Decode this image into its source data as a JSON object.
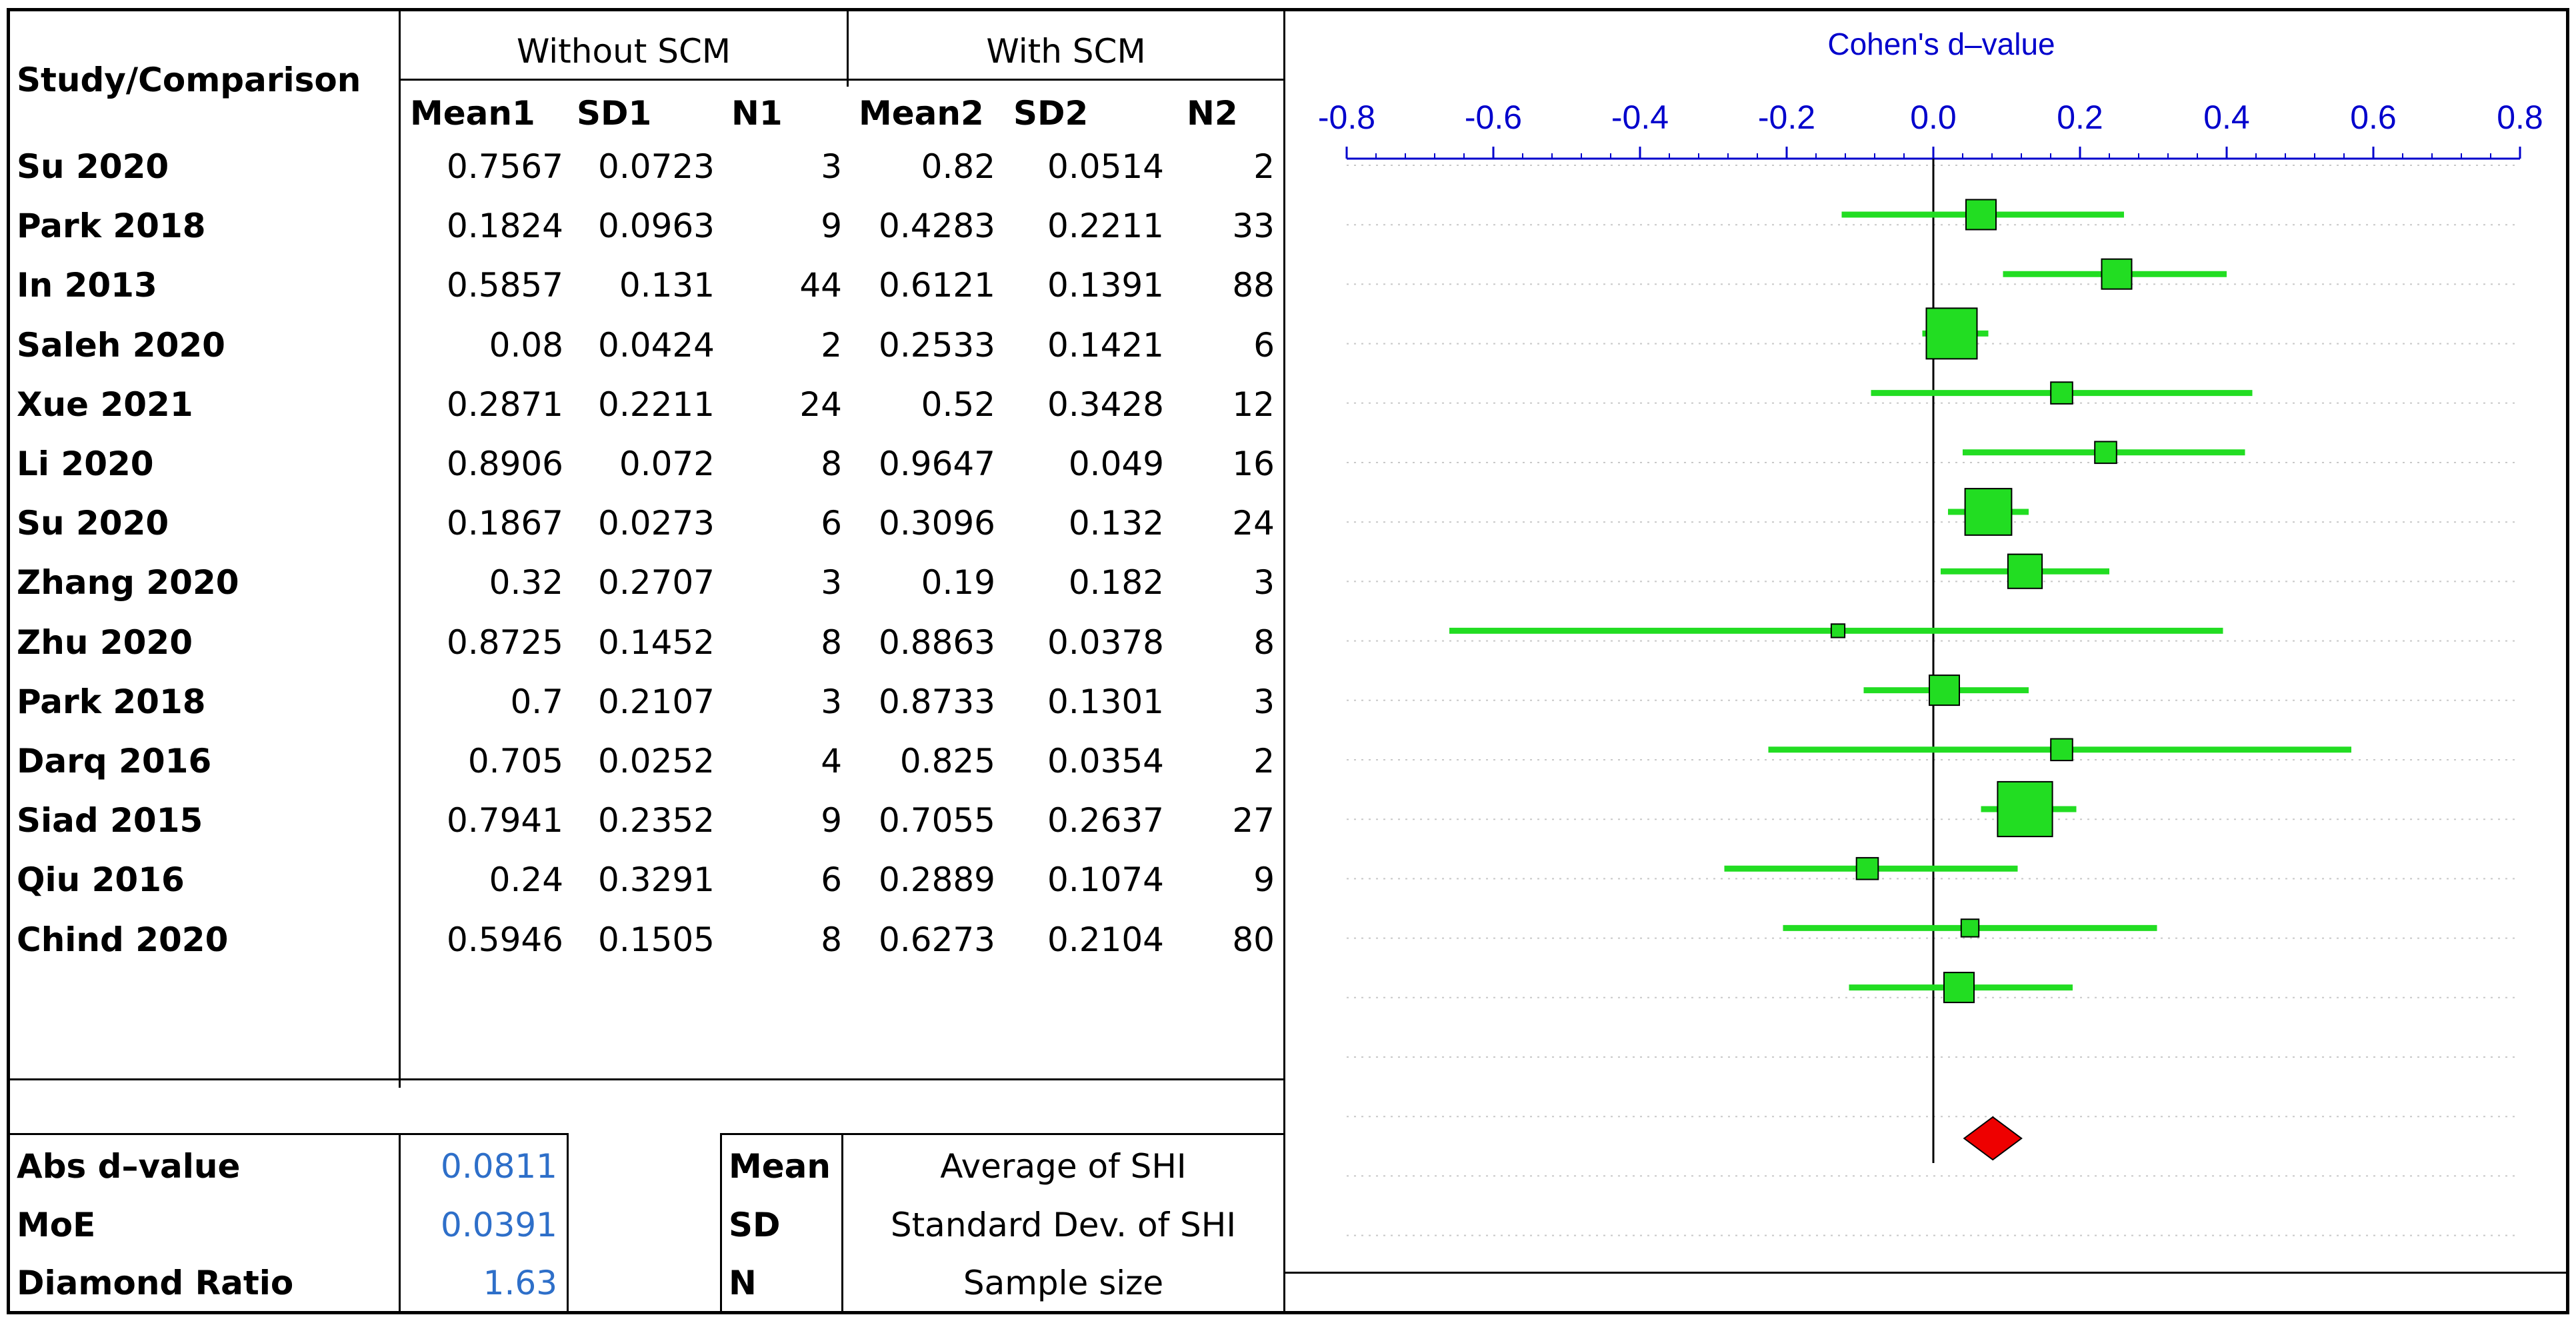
{
  "table": {
    "study_header": "Study/Comparison",
    "group1_header": "Without SCM",
    "group2_header": "With SCM",
    "columns": [
      "Mean1",
      "SD1",
      "N1",
      "Mean2",
      "SD2",
      "N2"
    ],
    "rows": [
      {
        "study": "Su 2020",
        "mean1": "0.7567",
        "sd1": "0.0723",
        "n1": "3",
        "mean2": "0.82",
        "sd2": "0.0514",
        "n2": "2"
      },
      {
        "study": "Park 2018",
        "mean1": "0.1824",
        "sd1": "0.0963",
        "n1": "9",
        "mean2": "0.4283",
        "sd2": "0.2211",
        "n2": "33"
      },
      {
        "study": "In 2013",
        "mean1": "0.5857",
        "sd1": "0.131",
        "n1": "44",
        "mean2": "0.6121",
        "sd2": "0.1391",
        "n2": "88"
      },
      {
        "study": "Saleh 2020",
        "mean1": "0.08",
        "sd1": "0.0424",
        "n1": "2",
        "mean2": "0.2533",
        "sd2": "0.1421",
        "n2": "6"
      },
      {
        "study": "Xue 2021",
        "mean1": "0.2871",
        "sd1": "0.2211",
        "n1": "24",
        "mean2": "0.52",
        "sd2": "0.3428",
        "n2": "12"
      },
      {
        "study": "Li 2020",
        "mean1": "0.8906",
        "sd1": "0.072",
        "n1": "8",
        "mean2": "0.9647",
        "sd2": "0.049",
        "n2": "16"
      },
      {
        "study": "Su 2020",
        "mean1": "0.1867",
        "sd1": "0.0273",
        "n1": "6",
        "mean2": "0.3096",
        "sd2": "0.132",
        "n2": "24"
      },
      {
        "study": "Zhang 2020",
        "mean1": "0.32",
        "sd1": "0.2707",
        "n1": "3",
        "mean2": "0.19",
        "sd2": "0.182",
        "n2": "3"
      },
      {
        "study": "Zhu 2020",
        "mean1": "0.8725",
        "sd1": "0.1452",
        "n1": "8",
        "mean2": "0.8863",
        "sd2": "0.0378",
        "n2": "8"
      },
      {
        "study": "Park 2018",
        "mean1": "0.7",
        "sd1": "0.2107",
        "n1": "3",
        "mean2": "0.8733",
        "sd2": "0.1301",
        "n2": "3"
      },
      {
        "study": "Darq 2016",
        "mean1": "0.705",
        "sd1": "0.0252",
        "n1": "4",
        "mean2": "0.825",
        "sd2": "0.0354",
        "n2": "2"
      },
      {
        "study": "Siad 2015",
        "mean1": "0.7941",
        "sd1": "0.2352",
        "n1": "9",
        "mean2": "0.7055",
        "sd2": "0.2637",
        "n2": "27"
      },
      {
        "study": "Qiu 2016",
        "mean1": "0.24",
        "sd1": "0.3291",
        "n1": "6",
        "mean2": "0.2889",
        "sd2": "0.1074",
        "n2": "9"
      },
      {
        "study": "Chind 2020",
        "mean1": "0.5946",
        "sd1": "0.1505",
        "n1": "8",
        "mean2": "0.6273",
        "sd2": "0.2104",
        "n2": "80"
      }
    ]
  },
  "summary": {
    "abs_d_label": "Abs d–value",
    "abs_d_value": "0.0811",
    "moe_label": "MoE",
    "moe_value": "0.0391",
    "diamond_label": "Diamond Ratio",
    "diamond_value": "1.63"
  },
  "legend": {
    "mean_key": "Mean",
    "mean_desc": "Average of SHI",
    "sd_key": "SD",
    "sd_desc": "Standard Dev. of SHI",
    "n_key": "N",
    "n_desc": "Sample size"
  },
  "colors": {
    "marker": "#22dd22",
    "diamond": "#ee0000",
    "axis": "#0000cc",
    "value_text": "#2e6fc9"
  },
  "chart_data": {
    "type": "forest",
    "title": "Cohen's  d–value",
    "xlim": [
      -0.8,
      0.8
    ],
    "ticks": [
      -0.8,
      -0.6,
      -0.4,
      -0.2,
      0.0,
      0.2,
      0.4,
      0.6,
      0.8
    ],
    "tick_labels": [
      "-0.8",
      "-0.6",
      "-0.4",
      "-0.2",
      "0.0",
      "0.2",
      "0.4",
      "0.6",
      "0.8"
    ],
    "studies": [
      {
        "d": 0.065,
        "lo": -0.125,
        "hi": 0.26,
        "weight": 5
      },
      {
        "d": 0.25,
        "lo": 0.095,
        "hi": 0.4,
        "weight": 5
      },
      {
        "d": 0.025,
        "lo": -0.015,
        "hi": 0.075,
        "weight": 10
      },
      {
        "d": 0.175,
        "lo": -0.085,
        "hi": 0.435,
        "weight": 3
      },
      {
        "d": 0.235,
        "lo": 0.04,
        "hi": 0.425,
        "weight": 3
      },
      {
        "d": 0.075,
        "lo": 0.02,
        "hi": 0.13,
        "weight": 9
      },
      {
        "d": 0.125,
        "lo": 0.01,
        "hi": 0.24,
        "weight": 6
      },
      {
        "d": -0.13,
        "lo": -0.66,
        "hi": 0.395,
        "weight": 1
      },
      {
        "d": 0.015,
        "lo": -0.095,
        "hi": 0.13,
        "weight": 5
      },
      {
        "d": 0.175,
        "lo": -0.225,
        "hi": 0.57,
        "weight": 3
      },
      {
        "d": 0.125,
        "lo": 0.065,
        "hi": 0.195,
        "weight": 11
      },
      {
        "d": -0.09,
        "lo": -0.285,
        "hi": 0.115,
        "weight": 3
      },
      {
        "d": 0.05,
        "lo": -0.205,
        "hi": 0.305,
        "weight": 2
      },
      {
        "d": 0.035,
        "lo": -0.115,
        "hi": 0.19,
        "weight": 5
      }
    ],
    "pooled": {
      "d": 0.0811,
      "moe": 0.0391
    }
  }
}
